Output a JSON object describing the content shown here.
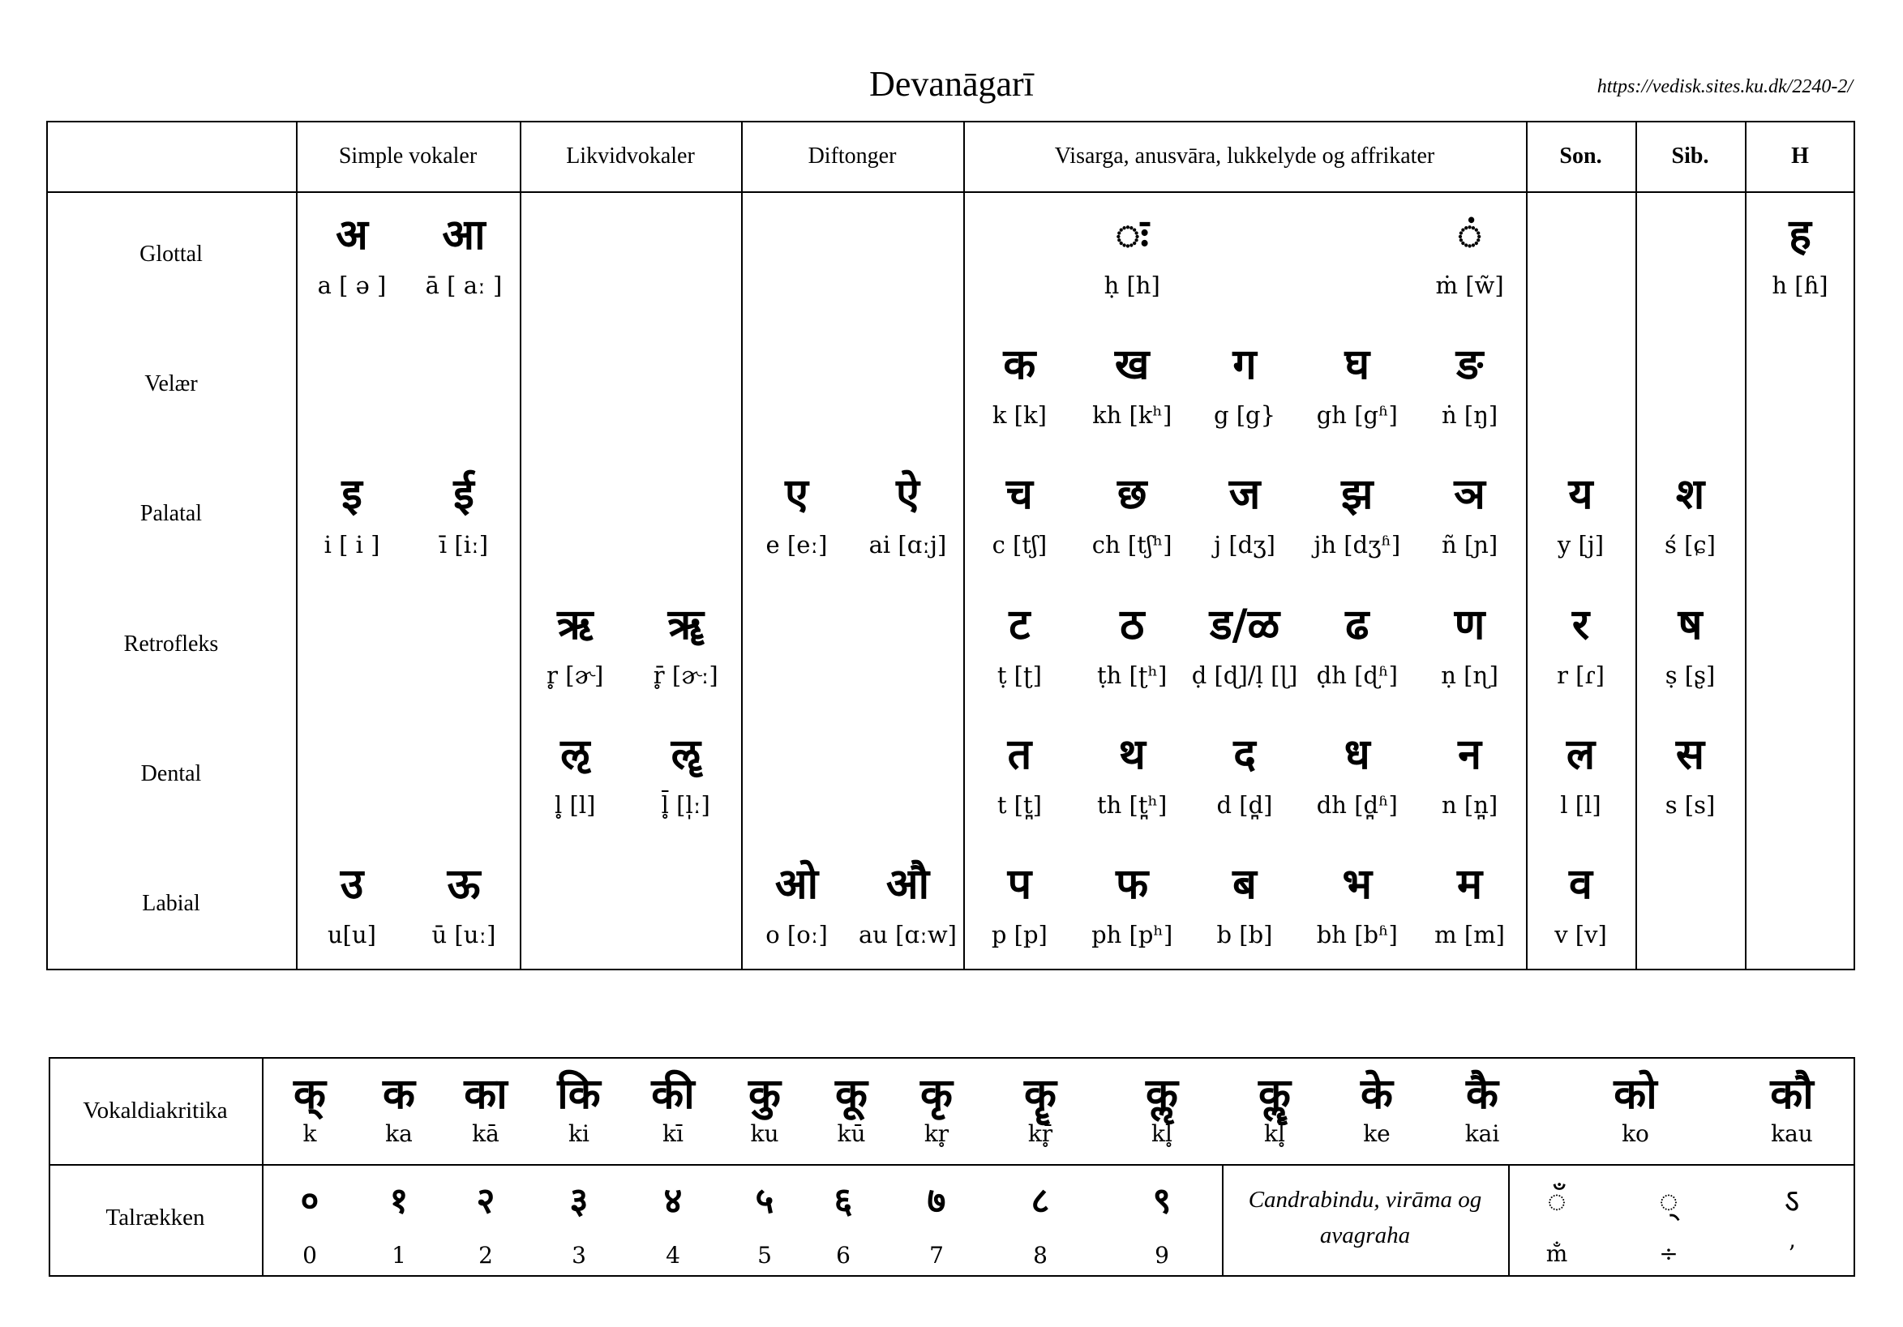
{
  "title": "Devanāgarī",
  "url": "https://vedisk.sites.ku.dk/2240-2/",
  "headers": [
    "Simple vokaler",
    "Likvidvokaler",
    "Diftonger",
    "Visarga, anusvāra, lukkelyde og affrikater",
    "Son.",
    "Sib.",
    "H"
  ],
  "rows": [
    {
      "label": "Glottal",
      "cells": [
        {
          "g": "अ",
          "t": "a [ ə ]"
        },
        {
          "g": "आ",
          "t": "ā [ aː ]"
        },
        null,
        null,
        null,
        null,
        null,
        {
          "g": "ः",
          "t": "ḥ [h]"
        },
        null,
        null,
        {
          "g": "ं",
          "t": "ṁ [w̃]"
        },
        null,
        null,
        {
          "g": "ह",
          "t": "h [ɦ]"
        }
      ]
    },
    {
      "label": "Velær",
      "cells": [
        null,
        null,
        null,
        null,
        null,
        null,
        {
          "g": "क",
          "t": "k [k]"
        },
        {
          "g": "ख",
          "t": "kh [kʰ]"
        },
        {
          "g": "ग",
          "t": "g [g}"
        },
        {
          "g": "घ",
          "t": "gh [gʱ]"
        },
        {
          "g": "ङ",
          "t": "ṅ [ŋ]"
        },
        null,
        null,
        null
      ]
    },
    {
      "label": "Palatal",
      "cells": [
        {
          "g": "इ",
          "t": "i [ i ]"
        },
        {
          "g": "ई",
          "t": "ī [iː]"
        },
        null,
        null,
        {
          "g": "ए",
          "t": "e [eː]"
        },
        {
          "g": "ऐ",
          "t": "ai [ɑːj]"
        },
        {
          "g": "च",
          "t": "c [tʃ]"
        },
        {
          "g": "छ",
          "t": "ch [tʃʰ]"
        },
        {
          "g": "ज",
          "t": "j [dʒ]"
        },
        {
          "g": "झ",
          "t": "jh [dʒʱ]"
        },
        {
          "g": "ञ",
          "t": "ñ [ɲ]"
        },
        {
          "g": "य",
          "t": "y [j]"
        },
        {
          "g": "श",
          "t": "ś [ɕ]"
        },
        null
      ]
    },
    {
      "label": "Retrofleks",
      "cells": [
        null,
        null,
        {
          "g": "ऋ",
          "t": "r̥ [ɚ]"
        },
        {
          "g": "ॠ",
          "t": "r̥̄ [ɚː]"
        },
        null,
        null,
        {
          "g": "ट",
          "t": "ṭ [ʈ]"
        },
        {
          "g": "ठ",
          "t": "ṭh [ʈʰ]"
        },
        {
          "g": "ड/ळ",
          "t": "ḍ [ɖ]/ḷ [ɭ]"
        },
        {
          "g": "ढ",
          "t": "ḍh [ɖʱ]"
        },
        {
          "g": "ण",
          "t": "ṇ [ɳ]"
        },
        {
          "g": "र",
          "t": "r [ɾ]"
        },
        {
          "g": "ष",
          "t": "ṣ [ʂ]"
        },
        null
      ]
    },
    {
      "label": "Dental",
      "cells": [
        null,
        null,
        {
          "g": "ऌ",
          "t": "l̥ [l]"
        },
        {
          "g": "ॡ",
          "t": "l̥̄ [l̩ː]"
        },
        null,
        null,
        {
          "g": "त",
          "t": "t [t̪]"
        },
        {
          "g": "थ",
          "t": "th [t̪ʰ]"
        },
        {
          "g": "द",
          "t": "d [d̪]"
        },
        {
          "g": "ध",
          "t": "dh [d̪ʱ]"
        },
        {
          "g": "न",
          "t": "n [n̪]"
        },
        {
          "g": "ल",
          "t": "l [l]"
        },
        {
          "g": "स",
          "t": "s [s]"
        },
        null
      ]
    },
    {
      "label": "Labial",
      "cells": [
        {
          "g": "उ",
          "t": "u[u]"
        },
        {
          "g": "ऊ",
          "t": "ū [uː]"
        },
        null,
        null,
        {
          "g": "ओ",
          "t": "o [oː]"
        },
        {
          "g": "औ",
          "t": "au [ɑːw]"
        },
        {
          "g": "प",
          "t": "p [p]"
        },
        {
          "g": "फ",
          "t": "ph [pʰ]"
        },
        {
          "g": "ब",
          "t": "b [b]"
        },
        {
          "g": "भ",
          "t": "bh [bʱ]"
        },
        {
          "g": "म",
          "t": "m [m]"
        },
        {
          "g": "व",
          "t": "v [v]"
        },
        null,
        null
      ]
    }
  ],
  "diacritics": {
    "label": "Vokaldiakritika",
    "items": [
      {
        "g": "क्",
        "t": "k"
      },
      {
        "g": "क",
        "t": "ka"
      },
      {
        "g": "का",
        "t": "kā"
      },
      {
        "g": "कि",
        "t": "ki"
      },
      {
        "g": "की",
        "t": "kī"
      },
      {
        "g": "कु",
        "t": "ku"
      },
      {
        "g": "कू",
        "t": "kū"
      },
      {
        "g": "कृ",
        "t": "kr̥"
      },
      {
        "g": "कॄ",
        "t": "kr̥̄"
      },
      {
        "g": "कॢ",
        "t": "kl̥"
      },
      {
        "g": "कॣ",
        "t": "kl̥̄"
      },
      {
        "g": "के",
        "t": "ke"
      },
      {
        "g": "कै",
        "t": "kai"
      },
      {
        "g": "को",
        "t": "ko"
      },
      {
        "g": "कौ",
        "t": "kau"
      }
    ]
  },
  "numerals": {
    "label": "Talrækken",
    "items": [
      {
        "g": "०",
        "t": "0"
      },
      {
        "g": "१",
        "t": "1"
      },
      {
        "g": "२",
        "t": "2"
      },
      {
        "g": "३",
        "t": "3"
      },
      {
        "g": "४",
        "t": "4"
      },
      {
        "g": "५",
        "t": "5"
      },
      {
        "g": "६",
        "t": "6"
      },
      {
        "g": "७",
        "t": "7"
      },
      {
        "g": "८",
        "t": "8"
      },
      {
        "g": "९",
        "t": "9"
      }
    ],
    "note": "Candrabindu, virāma og avagraha",
    "signs": [
      {
        "g": "◌ँ",
        "t": "m̐"
      },
      {
        "g": "◌्",
        "t": "÷"
      },
      {
        "g": "ऽ",
        "t": "’"
      }
    ]
  }
}
